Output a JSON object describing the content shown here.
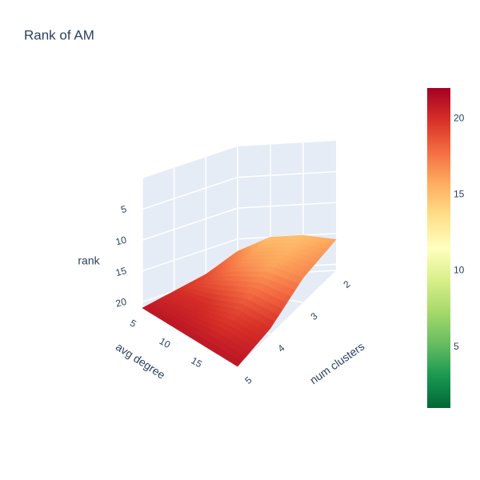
{
  "chart_data": {
    "type": "surface",
    "title": "Rank of AM",
    "x_label": "avg degree",
    "y_label": "num clusters",
    "z_label": "rank",
    "x": [
      5,
      10,
      15,
      20
    ],
    "y": [
      2,
      3,
      4,
      5
    ],
    "z": [
      [
        17,
        19,
        20,
        21
      ],
      [
        15,
        17,
        20,
        21
      ],
      [
        15,
        16,
        19,
        21
      ],
      [
        16,
        17,
        20,
        21
      ]
    ],
    "xlim": [
      5,
      20
    ],
    "ylim": [
      2,
      5
    ],
    "zlim": [
      0,
      21
    ],
    "z_reversed": true,
    "xticks": [
      5,
      10,
      15
    ],
    "yticks": [
      2,
      3,
      4,
      5
    ],
    "zticks": [
      5,
      10,
      15,
      20
    ],
    "cmin": 1,
    "cmax": 22,
    "colorbar_ticks": [
      5,
      10,
      15,
      20
    ],
    "colorscale": [
      [
        0,
        "#006837"
      ],
      [
        0.1,
        "#1a9850"
      ],
      [
        0.2,
        "#66bd63"
      ],
      [
        0.3,
        "#a6d96a"
      ],
      [
        0.4,
        "#d9ef8b"
      ],
      [
        0.5,
        "#ffffbf"
      ],
      [
        0.6,
        "#fee08b"
      ],
      [
        0.7,
        "#fdae61"
      ],
      [
        0.8,
        "#f46d43"
      ],
      [
        0.9,
        "#d73027"
      ],
      [
        1,
        "#a50026"
      ]
    ]
  }
}
